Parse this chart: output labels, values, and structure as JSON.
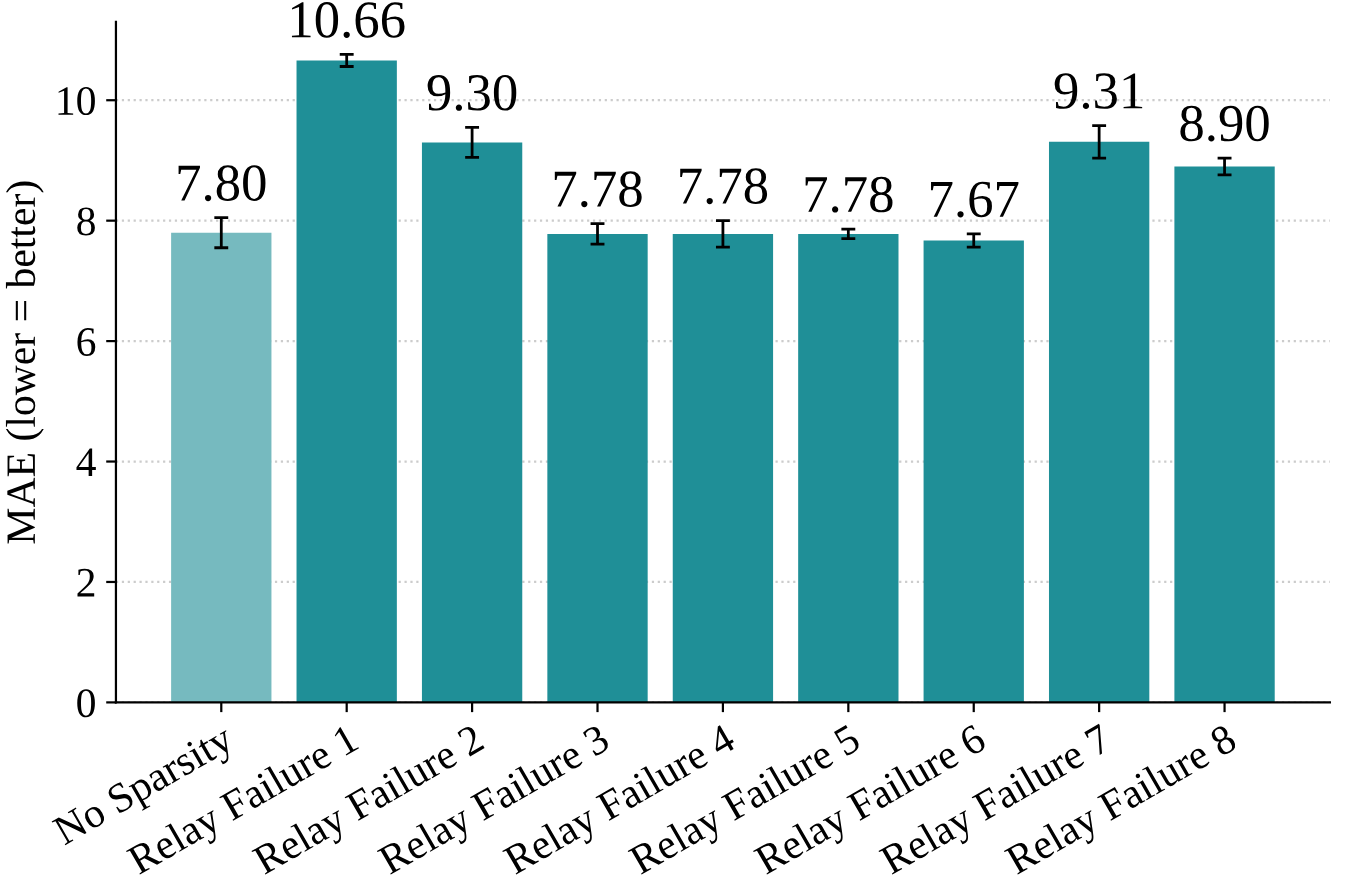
{
  "chart_data": {
    "type": "bar",
    "ylabel": "MAE (lower = better)",
    "categories": [
      "No Sparsity",
      "Relay Failure 1",
      "Relay Failure 2",
      "Relay Failure 3",
      "Relay Failure 4",
      "Relay Failure 5",
      "Relay Failure 6",
      "Relay Failure 7",
      "Relay Failure 8"
    ],
    "values": [
      7.8,
      10.66,
      9.3,
      7.78,
      7.78,
      7.78,
      7.67,
      9.31,
      8.9
    ],
    "errors": [
      0.25,
      0.1,
      0.25,
      0.17,
      0.22,
      0.08,
      0.11,
      0.27,
      0.14
    ],
    "colors": [
      "#76babf",
      "#1f8f97",
      "#1f8f97",
      "#1f8f97",
      "#1f8f97",
      "#1f8f97",
      "#1f8f97",
      "#1f8f97",
      "#1f8f97"
    ],
    "value_labels": [
      "7.80",
      "10.66",
      "9.30",
      "7.78",
      "7.78",
      "7.78",
      "7.67",
      "9.31",
      "8.90"
    ],
    "ylim": [
      0,
      11.3
    ],
    "yticks": [
      0,
      2,
      4,
      6,
      8,
      10
    ],
    "grid": "y"
  }
}
